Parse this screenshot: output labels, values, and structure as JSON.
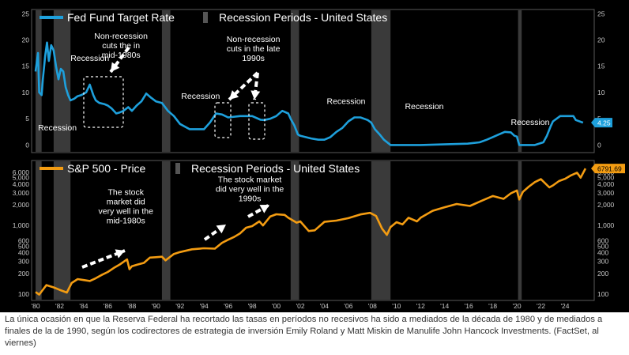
{
  "caption": "La única ocasión en que la Reserva Federal ha recortado las tasas en períodos no recesivos ha sido a mediados de la década de 1980 y de mediados a finales de la de 1990, según los codirectores de estrategia de inversión Emily Roland y Matt Miskin de Manulife John Hancock Investments. (FactSet, al viernes)",
  "colors": {
    "background": "#000000",
    "fed_line": "#1ea0dc",
    "sp_line": "#f39c12",
    "recession_band": "#3a3a3a",
    "text": "#ffffff",
    "axis_text": "#c8c8c8"
  },
  "x_axis": {
    "tick_labels": [
      "'80",
      "'82",
      "'84",
      "'86",
      "'88",
      "'90",
      "'92",
      "'94",
      "'96",
      "'98",
      "'00",
      "'02",
      "'04",
      "'06",
      "'08",
      "'10",
      "'12",
      "'14",
      "'16",
      "'18",
      "'20",
      "'22",
      "'24"
    ],
    "tick_years": [
      1980,
      1982,
      1984,
      1986,
      1988,
      1990,
      1992,
      1994,
      1996,
      1998,
      2000,
      2002,
      2004,
      2006,
      2008,
      2010,
      2012,
      2014,
      2016,
      2018,
      2020,
      2022,
      2024
    ]
  },
  "chart_data": [
    {
      "type": "line",
      "legend": {
        "series_label": "Fed Fund Target Rate",
        "band_label": "Recession Periods - United States"
      },
      "y_ticks": [
        "0",
        "5",
        "10",
        "15",
        "20",
        "25"
      ],
      "y_tick_values": [
        0,
        5,
        10,
        15,
        20,
        25
      ],
      "ylim": [
        -1,
        25.5
      ],
      "xlim": [
        1979.8,
        2026.3
      ],
      "recessions": [
        [
          1980.0,
          1980.5
        ],
        [
          1981.5,
          1982.9
        ],
        [
          1990.5,
          1991.2
        ],
        [
          2001.2,
          2001.9
        ],
        [
          2007.9,
          2009.5
        ],
        [
          2020.1,
          2020.4
        ]
      ],
      "last_value": "4.25",
      "series": [
        {
          "name": "Fed Fund Target Rate",
          "x": [
            1980.0,
            1980.2,
            1980.3,
            1980.5,
            1980.6,
            1980.8,
            1980.95,
            1981.1,
            1981.3,
            1981.5,
            1981.7,
            1981.9,
            1982.1,
            1982.3,
            1982.5,
            1982.7,
            1982.9,
            1983.2,
            1983.5,
            1983.8,
            1984.2,
            1984.5,
            1984.8,
            1985.0,
            1985.3,
            1985.7,
            1986.0,
            1986.3,
            1986.7,
            1987.0,
            1987.3,
            1987.7,
            1988.0,
            1988.4,
            1988.8,
            1989.2,
            1989.6,
            1990.0,
            1990.5,
            1991.0,
            1991.5,
            1992.0,
            1992.8,
            1993.5,
            1994.0,
            1994.5,
            1995.0,
            1995.5,
            1996.0,
            1997.0,
            1997.5,
            1998.0,
            1998.7,
            1999.0,
            1999.5,
            2000.0,
            2000.5,
            2001.0,
            2001.2,
            2001.5,
            2001.8,
            2002.0,
            2002.9,
            2003.5,
            2004.0,
            2004.5,
            2005.0,
            2005.5,
            2006.0,
            2006.5,
            2007.0,
            2007.6,
            2007.9,
            2008.2,
            2008.6,
            2008.95,
            2009.5,
            2012.0,
            2015.9,
            2016.9,
            2017.5,
            2018.0,
            2018.5,
            2019.0,
            2019.5,
            2019.8,
            2020.0,
            2020.2,
            2021.5,
            2022.2,
            2022.5,
            2022.8,
            2023.0,
            2023.6,
            2024.0,
            2024.7,
            2024.9,
            2025.5
          ],
          "y": [
            14.0,
            17.5,
            10.0,
            9.5,
            12.5,
            17.0,
            19.5,
            16.0,
            19.0,
            18.0,
            15.0,
            12.5,
            14.5,
            14.0,
            11.0,
            9.5,
            8.5,
            8.8,
            9.3,
            9.5,
            10.0,
            11.5,
            9.5,
            8.5,
            8.0,
            7.8,
            7.5,
            7.0,
            6.0,
            6.2,
            6.5,
            7.2,
            6.5,
            7.5,
            8.3,
            9.8,
            9.0,
            8.3,
            8.0,
            6.5,
            5.5,
            4.0,
            3.0,
            3.0,
            3.0,
            4.3,
            6.0,
            5.8,
            5.25,
            5.5,
            5.5,
            5.5,
            4.8,
            4.75,
            5.0,
            5.5,
            6.5,
            6.0,
            5.0,
            3.75,
            2.0,
            1.75,
            1.25,
            1.0,
            1.0,
            1.5,
            2.5,
            3.25,
            4.5,
            5.25,
            5.25,
            4.75,
            4.25,
            3.0,
            2.0,
            1.0,
            0.0,
            0.0,
            0.25,
            0.5,
            1.0,
            1.5,
            2.0,
            2.5,
            2.4,
            1.75,
            1.6,
            0.0,
            0.0,
            0.5,
            1.75,
            3.5,
            4.5,
            5.5,
            5.5,
            5.5,
            4.75,
            4.25
          ]
        }
      ],
      "annotations": [
        {
          "text": [
            "Recession"
          ],
          "x": 1982.9,
          "y": 16.0
        },
        {
          "text": [
            "Recession"
          ],
          "x": 1980.2,
          "y": 2.8
        },
        {
          "text": [
            "Non-recession",
            "cuts the in",
            "mid-1980s"
          ],
          "x": 1987.1,
          "y": 20.2
        },
        {
          "text": [
            "Recession"
          ],
          "x": 1992.1,
          "y": 8.8
        },
        {
          "text": [
            "Non-recession",
            "cuts in the late",
            "1990s"
          ],
          "x": 1998.1,
          "y": 19.6
        },
        {
          "text": [
            "Recession"
          ],
          "x": 2004.2,
          "y": 7.8
        },
        {
          "text": [
            "Recession"
          ],
          "x": 2010.7,
          "y": 6.8
        },
        {
          "text": [
            "Recession"
          ],
          "x": 2019.5,
          "y": 3.8
        }
      ]
    },
    {
      "type": "line",
      "scale": "log",
      "legend": {
        "series_label": "S&P 500 - Price",
        "band_label": "Recession Periods - United States"
      },
      "y_ticks": [
        "100",
        "200",
        "300",
        "400",
        "500",
        "600",
        "1,000",
        "2,000",
        "3,000",
        "4,000",
        "5,000",
        "6,000"
      ],
      "y_ticks_right": [
        "100",
        "200",
        "300",
        "400",
        "500",
        "600",
        "1,000",
        "2,000",
        "3,000",
        "4,000",
        "5,000",
        "6,000"
      ],
      "y_tick_values": [
        100,
        200,
        300,
        400,
        500,
        600,
        1000,
        2000,
        3000,
        4000,
        5000,
        6000
      ],
      "ylim": [
        85,
        7000
      ],
      "xlim": [
        1979.8,
        2026.3
      ],
      "recessions": [
        [
          1980.0,
          1980.5
        ],
        [
          1981.5,
          1982.9
        ],
        [
          1990.5,
          1991.2
        ],
        [
          2001.2,
          2001.9
        ],
        [
          2007.9,
          2009.5
        ],
        [
          2020.1,
          2020.4
        ]
      ],
      "last_value": "6791.69",
      "series": [
        {
          "name": "S&P 500 - Price",
          "x": [
            1980.0,
            1980.3,
            1980.9,
            1981.5,
            1982.0,
            1982.6,
            1983.0,
            1983.5,
            1984.0,
            1984.5,
            1985.0,
            1985.5,
            1986.0,
            1986.5,
            1987.0,
            1987.6,
            1987.8,
            1988.0,
            1988.5,
            1989.0,
            1989.5,
            1990.0,
            1990.5,
            1990.8,
            1991.0,
            1991.5,
            1992.0,
            1993.0,
            1994.0,
            1994.9,
            1995.5,
            1996.0,
            1996.5,
            1997.0,
            1997.5,
            1998.0,
            1998.6,
            1998.9,
            1999.5,
            2000.0,
            2000.7,
            2001.0,
            2001.7,
            2002.0,
            2002.7,
            2003.2,
            2004.0,
            2005.0,
            2006.0,
            2007.0,
            2007.8,
            2008.3,
            2008.8,
            2009.2,
            2009.5,
            2010.0,
            2010.5,
            2011.0,
            2011.7,
            2012.0,
            2013.0,
            2014.0,
            2015.0,
            2016.1,
            2017.0,
            2018.0,
            2018.9,
            2019.5,
            2020.0,
            2020.2,
            2020.5,
            2021.0,
            2021.5,
            2022.0,
            2022.7,
            2023.0,
            2023.5,
            2024.0,
            2024.5,
            2025.0,
            2025.3,
            2025.7
          ],
          "y": [
            107,
            98,
            135,
            125,
            115,
            105,
            145,
            165,
            160,
            155,
            170,
            190,
            210,
            240,
            270,
            320,
            230,
            255,
            270,
            285,
            340,
            345,
            350,
            310,
            330,
            385,
            410,
            450,
            465,
            460,
            560,
            620,
            680,
            770,
            930,
            980,
            1150,
            1000,
            1350,
            1460,
            1430,
            1300,
            1100,
            1150,
            830,
            850,
            1130,
            1180,
            1280,
            1450,
            1530,
            1380,
            900,
            730,
            950,
            1120,
            1040,
            1300,
            1150,
            1300,
            1640,
            1850,
            2060,
            1930,
            2270,
            2700,
            2450,
            2950,
            3250,
            2400,
            3100,
            3700,
            4300,
            4750,
            3600,
            3850,
            4450,
            4800,
            5400,
            5900,
            5000,
            6792
          ]
        }
      ],
      "annotations": [
        {
          "text": [
            "The stock",
            "market did",
            "very well in the",
            "mid-1980s"
          ],
          "x": 1987.5,
          "y": 2800
        },
        {
          "text": [
            "The stock market",
            "did very well in the",
            "1990s"
          ],
          "x": 1997.8,
          "y": 4300
        }
      ]
    }
  ]
}
